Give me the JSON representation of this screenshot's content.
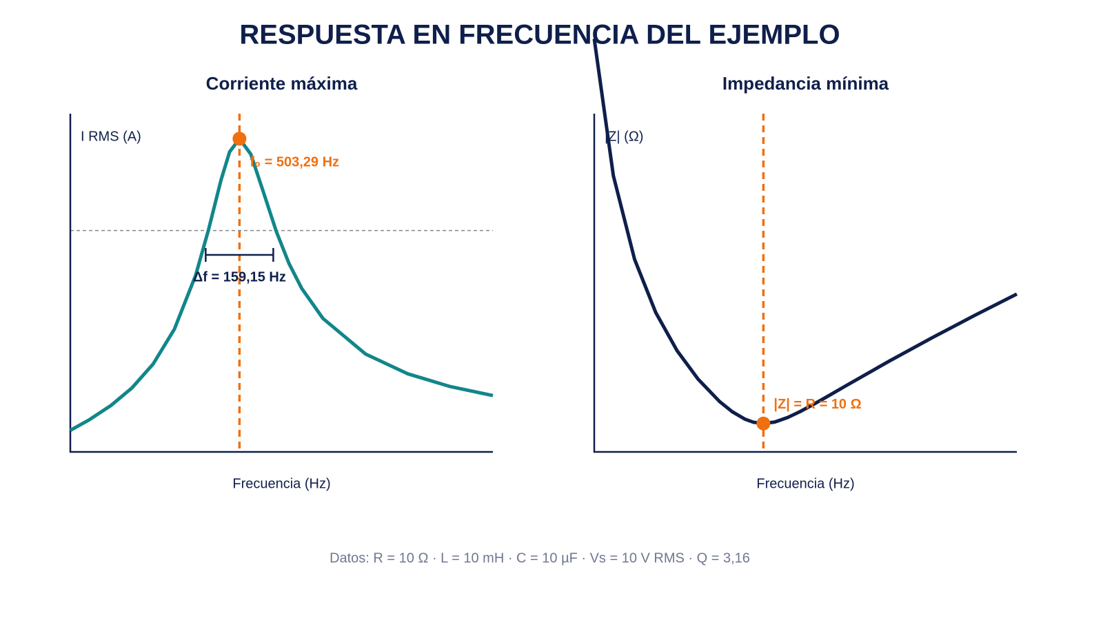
{
  "title": "RESPUESTA EN FRECUENCIA DEL EJEMPLO",
  "footnote": "Datos: R = 10 Ω · L = 10 mH · C = 10 µF · Vs = 10 V RMS · Q = 3,16",
  "chart_data": [
    {
      "type": "line",
      "title": "Corriente máxima",
      "x_label": "Frecuencia (Hz)",
      "y_label": "I RMS (A)",
      "xlim": [
        105,
        1100
      ],
      "ylim": [
        0,
        1.08
      ],
      "x": [
        105,
        150,
        200,
        250,
        300,
        350,
        400,
        430,
        460,
        480,
        503.29,
        530,
        560,
        590,
        620,
        650,
        700,
        800,
        900,
        1000,
        1100
      ],
      "series": [
        {
          "name": "I RMS (A)",
          "color": "#12868a",
          "values": [
            0.0688,
            0.1029,
            0.1476,
            0.2042,
            0.2807,
            0.3918,
            0.5636,
            0.7073,
            0.8688,
            0.9578,
            1,
            0.9505,
            0.8281,
            0.7039,
            0.6013,
            0.5217,
            0.4259,
            0.3127,
            0.2492,
            0.2085,
            0.18
          ]
        }
      ],
      "resonance_hz": 503.29,
      "marker_index": 10,
      "marker_color": "#f07010",
      "marker_label": "f₀ = 503,29 Hz",
      "half_power_level": 0.707,
      "bandwidth_hz": 159.15,
      "bandwidth_label": "Δf = 159,15 Hz"
    },
    {
      "type": "line",
      "title": "Impedancia mínima",
      "x_label": "Frecuencia (Hz)",
      "y_label": "|Z| (Ω)",
      "xlim": [
        105,
        1100
      ],
      "ylim": [
        0,
        119
      ],
      "x": [
        105,
        150,
        200,
        250,
        300,
        350,
        400,
        430,
        460,
        480,
        503.29,
        530,
        560,
        590,
        620,
        650,
        700,
        800,
        900,
        1000,
        1100
      ],
      "series": [
        {
          "name": "|Z| (Ω)",
          "color": "#0f1f4b",
          "values": [
            145.32,
            97.2,
            67.75,
            48.98,
            35.63,
            25.52,
            17.74,
            14.14,
            11.51,
            10.44,
            10,
            10.52,
            12.08,
            14.21,
            16.63,
            19.17,
            23.48,
            31.98,
            40.13,
            47.97,
            55.55
          ]
        }
      ],
      "resonance_hz": 503.29,
      "marker_index": 10,
      "marker_color": "#f07010",
      "marker_label": "|Z| = R = 10 Ω"
    }
  ]
}
